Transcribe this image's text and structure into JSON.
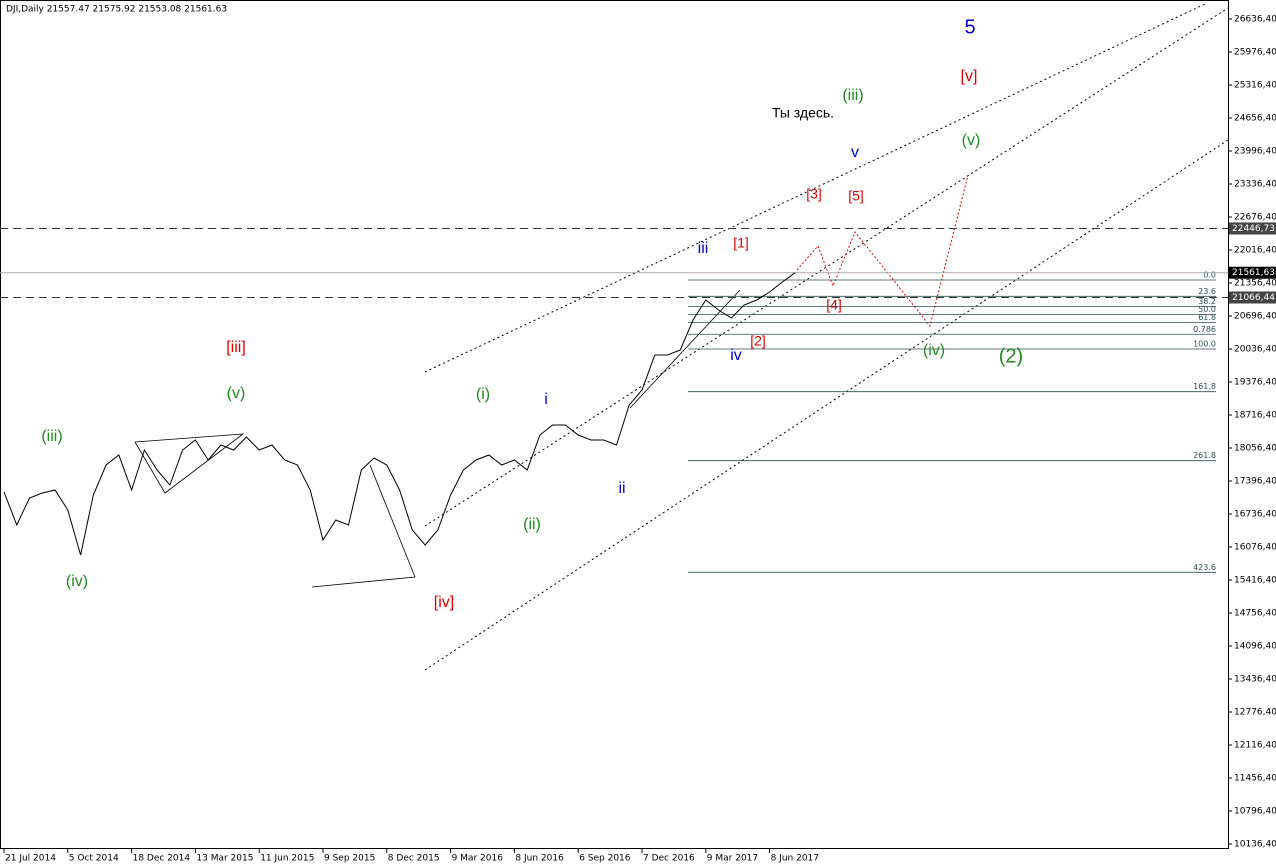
{
  "chart_data": {
    "type": "line",
    "header": "DJI,Daily  21557.47 21575.92 21553.08 21561.63",
    "categories": [
      "21 Jul 2014",
      null,
      null,
      null,
      null,
      "5 Oct 2014",
      null,
      null,
      null,
      null,
      "18 Dec 2014",
      null,
      null,
      null,
      null,
      "13 Mar 2015",
      null,
      null,
      null,
      null,
      "11 Jun 2015",
      null,
      null,
      null,
      null,
      "9 Sep 2015",
      null,
      null,
      null,
      null,
      "8 Dec 2015",
      null,
      null,
      null,
      null,
      "9 Mar 2016",
      null,
      null,
      null,
      null,
      "8 Jun 2016",
      null,
      null,
      null,
      null,
      "6 Sep 2016",
      null,
      null,
      null,
      null,
      "7 Dec 2016",
      null,
      null,
      null,
      null,
      "9 Mar 2017",
      null,
      null,
      null,
      null,
      "8 Jun 2017",
      null,
      null,
      null,
      null,
      null,
      null,
      null,
      null,
      null,
      null,
      null,
      null,
      null,
      null,
      null,
      null,
      null,
      null,
      null,
      null,
      null,
      null,
      null,
      null,
      null,
      null,
      null,
      null,
      null,
      null,
      null,
      null,
      null,
      null,
      null
    ],
    "series": [
      {
        "name": "DJI",
        "color": "#000000",
        "values": [
          17176,
          16516,
          17056,
          17156,
          17216,
          16816,
          15916,
          17116,
          17716,
          17916,
          17216,
          18016,
          17616,
          17316,
          18016,
          18216,
          17816,
          18116,
          18016,
          18276,
          18016,
          18116,
          17816,
          17716,
          17216,
          16216,
          16616,
          16516,
          17616,
          17856,
          17716,
          17216,
          16416,
          16116,
          16416,
          17116,
          17616,
          17816,
          17916,
          17716,
          17816,
          17616,
          18316,
          18516,
          18516,
          18316,
          18216,
          18216,
          18116,
          18916,
          19216,
          19916,
          19916,
          20016,
          20616,
          21016,
          20816,
          20656,
          20916,
          21016,
          21176,
          21376,
          21561.63,
          null,
          null,
          null,
          null,
          null,
          null,
          null,
          null,
          null,
          null,
          null,
          null,
          null,
          null,
          null,
          null,
          null,
          null,
          null,
          null,
          null,
          null,
          null,
          null,
          null,
          null,
          null,
          null,
          null,
          null,
          null,
          null,
          null
        ]
      }
    ],
    "ylim": [
      9916.4,
      27016.4
    ],
    "yticks": [
      {
        "value": 26636.4,
        "label": "26636,40"
      },
      {
        "value": 25976.4,
        "label": "25976,40"
      },
      {
        "value": 25316.4,
        "label": "25316,40"
      },
      {
        "value": 24656.4,
        "label": "24656,40"
      },
      {
        "value": 23996.4,
        "label": "23996,40"
      },
      {
        "value": 23336.4,
        "label": "23336,40"
      },
      {
        "value": 22676.4,
        "label": "22676,40"
      },
      {
        "value": 22016.4,
        "label": "22016,40"
      },
      {
        "value": 21356.4,
        "label": "21356,40"
      },
      {
        "value": 20696.4,
        "label": "20696,40"
      },
      {
        "value": 20036.4,
        "label": "20036,40"
      },
      {
        "value": 19376.4,
        "label": "19376,40"
      },
      {
        "value": 18716.4,
        "label": "18716,40"
      },
      {
        "value": 18056.4,
        "label": "18056,40"
      },
      {
        "value": 17396.4,
        "label": "17396,40"
      },
      {
        "value": 16736.4,
        "label": "16736,40"
      },
      {
        "value": 16076.4,
        "label": "16076,40"
      },
      {
        "value": 15416.4,
        "label": "15416,40"
      },
      {
        "value": 14756.4,
        "label": "14756,40"
      },
      {
        "value": 14096.4,
        "label": "14096,40"
      },
      {
        "value": 13436.4,
        "label": "13436,40"
      },
      {
        "value": 12776.4,
        "label": "12776,40"
      },
      {
        "value": 12116.4,
        "label": "12116,40"
      },
      {
        "value": 11456.4,
        "label": "11456,40"
      },
      {
        "value": 10796.4,
        "label": "10796,40"
      },
      {
        "value": 10136.4,
        "label": "10136,40"
      }
    ],
    "levels": [
      {
        "value": 22446.73,
        "label": "22446,73",
        "style": "dashed"
      },
      {
        "value": 21561.63,
        "label": "21561,63",
        "style": "solid"
      },
      {
        "value": 21066.44,
        "label": "21066,44",
        "style": "dashed"
      }
    ],
    "fib": [
      {
        "value": 21416,
        "label": "0.0"
      },
      {
        "value": 21090.3,
        "label": "23.6"
      },
      {
        "value": 20888.8,
        "label": "38.2"
      },
      {
        "value": 20726,
        "label": "50.0"
      },
      {
        "value": 20563.2,
        "label": "61.8"
      },
      {
        "value": 20331.3,
        "label": "0.786"
      },
      {
        "value": 20036,
        "label": "100.0"
      },
      {
        "value": 19183,
        "label": "161.8"
      },
      {
        "value": 17803,
        "label": "261.8"
      },
      {
        "value": 15570,
        "label": "423.6"
      }
    ],
    "annotations": [
      {
        "text": "5",
        "color": "#0000dd"
      },
      {
        "text": "[v]",
        "color": "#e00000"
      },
      {
        "text": "(iii)",
        "color": "#1e8c1e"
      },
      {
        "text": "Ты здесь.",
        "color": "#000000"
      },
      {
        "text": "(v)",
        "color": "#1e8c1e"
      },
      {
        "text": "v",
        "color": "#0000dd"
      },
      {
        "text": "[3]",
        "color": "#e00000"
      },
      {
        "text": "[5]",
        "color": "#e00000"
      },
      {
        "text": "iii",
        "color": "#0000dd"
      },
      {
        "text": "[1]",
        "color": "#e00000"
      },
      {
        "text": "[4]",
        "color": "#e00000"
      },
      {
        "text": "[2]",
        "color": "#e00000"
      },
      {
        "text": "iv",
        "color": "#0000dd"
      },
      {
        "text": "(iv)",
        "color": "#1e8c1e"
      },
      {
        "text": "(2)",
        "color": "#1e8c1e"
      },
      {
        "text": "[iii]",
        "color": "#e00000"
      },
      {
        "text": "(v)",
        "color": "#1e8c1e"
      },
      {
        "text": "(i)",
        "color": "#1e8c1e"
      },
      {
        "text": "i",
        "color": "#0000dd"
      },
      {
        "text": "(iii)",
        "color": "#1e8c1e"
      },
      {
        "text": "(ii)",
        "color": "#1e8c1e"
      },
      {
        "text": "ii",
        "color": "#0000dd"
      },
      {
        "text": "(iv)",
        "color": "#1e8c1e"
      },
      {
        "text": "[iv]",
        "color": "#e00000"
      }
    ]
  }
}
